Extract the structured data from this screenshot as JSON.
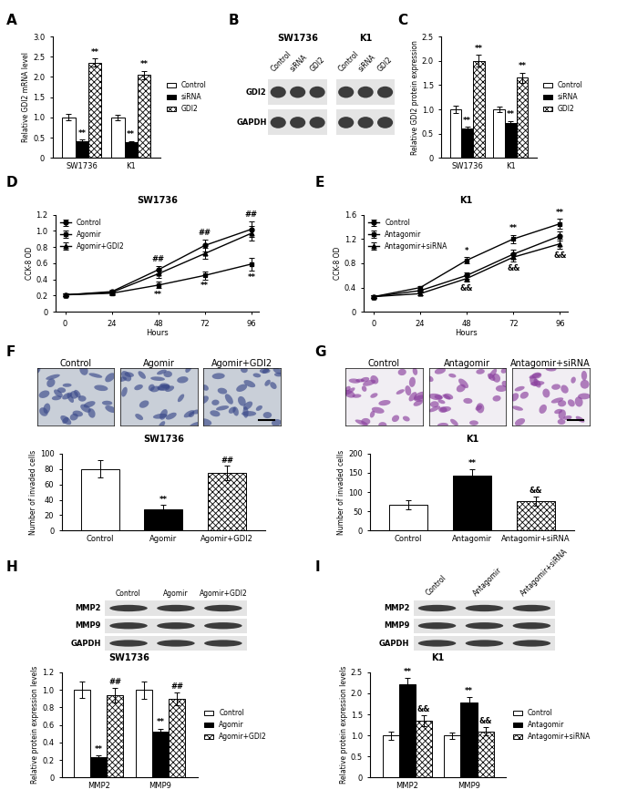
{
  "chart_data": [
    {
      "panel": "A",
      "type": "bar",
      "ylabel": "Relative GDI2 mRNA level",
      "categories": [
        "SW1736",
        "K1"
      ],
      "series": [
        {
          "name": "Control",
          "color": "#ffffff",
          "values": [
            1.0,
            1.0
          ],
          "errors": [
            0.08,
            0.07
          ]
        },
        {
          "name": "siRNA",
          "color": "#000000",
          "values": [
            0.42,
            0.38
          ],
          "errors": [
            0.03,
            0.03
          ],
          "marks": [
            "**",
            "**"
          ]
        },
        {
          "name": "GDI2",
          "color": "#ffffff",
          "values": [
            2.35,
            2.05
          ],
          "errors": [
            0.1,
            0.1
          ],
          "marks": [
            "**",
            "**"
          ]
        }
      ],
      "ylim": [
        0,
        3.0
      ],
      "yticks": [
        0,
        0.5,
        1.0,
        1.5,
        2.0,
        2.5,
        3.0
      ],
      "legend": "right"
    },
    {
      "panel": "C",
      "type": "bar",
      "ylabel": "Relative GDI2 protein expression",
      "categories": [
        "SW1736",
        "K1"
      ],
      "series": [
        {
          "name": "Control",
          "color": "#ffffff",
          "values": [
            1.0,
            1.0
          ],
          "errors": [
            0.08,
            0.06
          ]
        },
        {
          "name": "siRNA",
          "color": "#000000",
          "values": [
            0.6,
            0.72
          ],
          "errors": [
            0.04,
            0.04
          ],
          "marks": [
            "**",
            "**"
          ]
        },
        {
          "name": "GDI2",
          "color": "#ffffff",
          "values": [
            2.0,
            1.65
          ],
          "errors": [
            0.12,
            0.1
          ],
          "marks": [
            "**",
            "**"
          ]
        }
      ],
      "ylim": [
        0,
        2.5
      ],
      "yticks": [
        0,
        0.5,
        1.0,
        1.5,
        2.0,
        2.5
      ],
      "legend": "right"
    },
    {
      "panel": "D",
      "type": "line",
      "title": "SW1736",
      "xlabel": "Hours",
      "ylabel": "CCK-8 OD",
      "x": [
        0,
        24,
        48,
        72,
        96
      ],
      "xlim": [
        -5,
        100
      ],
      "xticks": [
        0,
        24,
        48,
        72,
        96
      ],
      "ylim": [
        0,
        1.2
      ],
      "yticks": [
        0,
        0.2,
        0.4,
        0.6,
        0.8,
        1.0,
        1.2
      ],
      "legend": "upper left",
      "series": [
        {
          "name": "Control",
          "color": "#000000",
          "marker": "circle",
          "values": [
            0.21,
            0.25,
            0.52,
            0.82,
            1.02
          ],
          "errors": [
            0.02,
            0.02,
            0.05,
            0.07,
            0.1
          ]
        },
        {
          "name": "Agomir",
          "color": "#000000",
          "marker": "square",
          "values": [
            0.21,
            0.23,
            0.33,
            0.45,
            0.59
          ],
          "errors": [
            0.02,
            0.02,
            0.04,
            0.05,
            0.08
          ],
          "marks": [
            null,
            null,
            "**",
            "**",
            "**"
          ]
        },
        {
          "name": "Agomir+GDI2",
          "color": "#000000",
          "marker": "triangle",
          "values": [
            0.21,
            0.24,
            0.47,
            0.72,
            0.97
          ],
          "errors": [
            0.02,
            0.02,
            0.05,
            0.07,
            0.09
          ],
          "marks": [
            null,
            null,
            "##",
            "##",
            "##"
          ]
        }
      ]
    },
    {
      "panel": "E",
      "type": "line",
      "title": "K1",
      "xlabel": "Hours",
      "ylabel": "CCK-8 OD",
      "x": [
        0,
        24,
        48,
        72,
        96
      ],
      "xlim": [
        -5,
        100
      ],
      "xticks": [
        0,
        24,
        48,
        72,
        96
      ],
      "ylim": [
        0,
        1.6
      ],
      "yticks": [
        0,
        0.4,
        0.8,
        1.2,
        1.6
      ],
      "legend": "upper left",
      "series": [
        {
          "name": "Control",
          "color": "#000000",
          "marker": "circle",
          "values": [
            0.25,
            0.35,
            0.6,
            0.95,
            1.25
          ],
          "errors": [
            0.02,
            0.03,
            0.05,
            0.07,
            0.08
          ]
        },
        {
          "name": "Antagomir",
          "color": "#000000",
          "marker": "square",
          "values": [
            0.25,
            0.4,
            0.85,
            1.2,
            1.45
          ],
          "errors": [
            0.02,
            0.03,
            0.05,
            0.07,
            0.08
          ],
          "marks": [
            null,
            null,
            "*",
            "**",
            "**"
          ]
        },
        {
          "name": "Antagomir+siRNA",
          "color": "#000000",
          "marker": "triangle",
          "values": [
            0.25,
            0.3,
            0.55,
            0.9,
            1.12
          ],
          "errors": [
            0.02,
            0.03,
            0.05,
            0.07,
            0.08
          ],
          "marks": [
            null,
            null,
            "&&",
            "&&",
            "&&"
          ]
        }
      ]
    },
    {
      "panel": "F",
      "type": "bar",
      "title": "SW1736",
      "ylabel": "Number of invaded cells",
      "categories": [
        "Control",
        "Agomir",
        "Agomir+GDI2"
      ],
      "values": [
        80,
        27,
        75
      ],
      "errors": [
        11,
        6,
        9
      ],
      "marks": [
        null,
        "**",
        "##"
      ],
      "colors": [
        "#ffffff",
        "#000000",
        "#ffffff"
      ],
      "ylim": [
        0,
        100
      ],
      "yticks": [
        0,
        20,
        40,
        60,
        80,
        100
      ]
    },
    {
      "panel": "G",
      "type": "bar",
      "title": "K1",
      "ylabel": "Number of invaded cells",
      "categories": [
        "Control",
        "Antagomir",
        "Antagomir+siRNA"
      ],
      "values": [
        68,
        142,
        76
      ],
      "errors": [
        12,
        18,
        12
      ],
      "marks": [
        null,
        "**",
        "&&"
      ],
      "colors": [
        "#ffffff",
        "#000000",
        "#ffffff"
      ],
      "ylim": [
        0,
        200
      ],
      "yticks": [
        0,
        50,
        100,
        150,
        200
      ]
    },
    {
      "panel": "H",
      "type": "bar",
      "title": "SW1736",
      "ylabel": "Relative protein expression levels",
      "categories": [
        "MMP2",
        "MMP9"
      ],
      "series": [
        {
          "name": "Control",
          "color": "#ffffff",
          "values": [
            1.0,
            1.0
          ],
          "errors": [
            0.09,
            0.1
          ]
        },
        {
          "name": "Agomir",
          "color": "#000000",
          "values": [
            0.23,
            0.52
          ],
          "errors": [
            0.02,
            0.04
          ],
          "marks": [
            "**",
            "**"
          ]
        },
        {
          "name": "Agomir+GDI2",
          "color": "#ffffff",
          "values": [
            0.94,
            0.9
          ],
          "errors": [
            0.08,
            0.07
          ],
          "marks": [
            "##",
            "##"
          ]
        }
      ],
      "ylim": [
        0,
        1.2
      ],
      "yticks": [
        0,
        0.2,
        0.4,
        0.6,
        0.8,
        1.0,
        1.2
      ],
      "legend": "right"
    },
    {
      "panel": "I",
      "type": "bar",
      "title": "K1",
      "ylabel": "Relative protein expression levels",
      "categories": [
        "MMP2",
        "MMP9"
      ],
      "series": [
        {
          "name": "Control",
          "color": "#ffffff",
          "values": [
            1.0,
            1.0
          ],
          "errors": [
            0.1,
            0.08
          ]
        },
        {
          "name": "Antagomir",
          "color": "#000000",
          "values": [
            2.22,
            1.78
          ],
          "errors": [
            0.15,
            0.13
          ],
          "marks": [
            "**",
            "**"
          ]
        },
        {
          "name": "Antagomir+siRNA",
          "color": "#ffffff",
          "values": [
            1.35,
            1.1
          ],
          "errors": [
            0.12,
            0.1
          ],
          "marks": [
            "&&",
            "&&"
          ]
        }
      ],
      "ylim": [
        0,
        2.5
      ],
      "yticks": [
        0,
        0.5,
        1.0,
        1.5,
        2.0,
        2.5
      ],
      "legend": "right"
    }
  ],
  "blot_groups": [
    {
      "panel": "B",
      "rows": [
        "GDI2",
        "GAPDH"
      ],
      "blots": [
        {
          "title": "SW1736",
          "lanes": [
            "Control",
            "siRNA",
            "GDI2"
          ]
        },
        {
          "title": "K1",
          "lanes": [
            "Control",
            "siRNA",
            "GDI2"
          ]
        }
      ]
    },
    {
      "rows": [
        "MMP2",
        "MMP9",
        "GAPDH"
      ],
      "blots": [
        {
          "lanes": [
            "Control",
            "Agomir",
            "Agomir+GDI2"
          ]
        }
      ]
    },
    {
      "rows": [
        "MMP2",
        "MMP9",
        "GAPDH"
      ],
      "blots": [
        {
          "lanes": [
            "Control",
            "Antagomir",
            "Antagomir+siRNA"
          ]
        }
      ]
    }
  ],
  "micrographs": [
    {
      "labels": [
        "Control",
        "Agomir",
        "Agomir+GDI2"
      ]
    },
    {
      "labels": [
        "Control",
        "Antagomir",
        "Antagomir+siRNA"
      ]
    }
  ]
}
